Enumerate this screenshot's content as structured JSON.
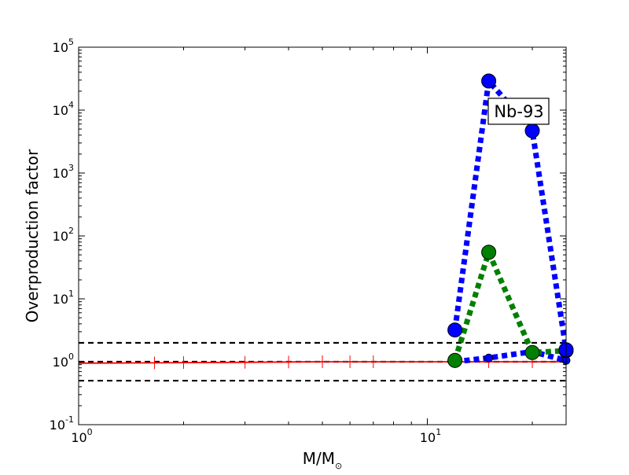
{
  "chart_data": {
    "type": "line",
    "annotation": "Nb-93",
    "ylabel": "Overproduction factor",
    "xlabel_main": "M/M",
    "xlabel_sub": "⊙",
    "xscale": "log",
    "yscale": "log",
    "xlim": [
      1,
      25
    ],
    "ylim": [
      0.1,
      100000
    ],
    "x_ticks": [
      {
        "value": 1,
        "base": "10",
        "exp": "0"
      },
      {
        "value": 10,
        "base": "10",
        "exp": "1"
      }
    ],
    "y_ticks": [
      {
        "value": 0.1,
        "base": "10",
        "exp": "-1"
      },
      {
        "value": 1,
        "base": "10",
        "exp": "0"
      },
      {
        "value": 10,
        "base": "10",
        "exp": "1"
      },
      {
        "value": 100,
        "base": "10",
        "exp": "2"
      },
      {
        "value": 1000,
        "base": "10",
        "exp": "3"
      },
      {
        "value": 10000,
        "base": "10",
        "exp": "4"
      },
      {
        "value": 100000,
        "base": "10",
        "exp": "5"
      }
    ],
    "reference_lines": [
      0.5,
      1,
      2
    ],
    "colors": {
      "series_blue": "#0000ff",
      "series_green": "#008000",
      "series_red": "#ff0000",
      "reference": "#000000"
    },
    "series": [
      {
        "color": "series_red",
        "style": "solid",
        "marker": "plus",
        "x": [
          1,
          1.65,
          2,
          3,
          4,
          5,
          6,
          7,
          12,
          15,
          20,
          25
        ],
        "y": [
          0.95,
          0.96,
          0.97,
          0.98,
          0.99,
          1.0,
          1.0,
          1.0,
          1.0,
          1.0,
          1.0,
          1.0
        ]
      },
      {
        "color": "series_blue",
        "style": "dotted",
        "marker": "small-circle",
        "x": [
          12,
          15,
          20,
          25
        ],
        "y": [
          1.0,
          1.15,
          1.45,
          1.05
        ]
      },
      {
        "color": "series_green",
        "style": "dotted",
        "marker": "large-circle",
        "x": [
          12,
          15,
          20,
          25
        ],
        "y": [
          1.05,
          55,
          1.4,
          1.5
        ]
      },
      {
        "color": "series_blue",
        "style": "dotted",
        "marker": "large-circle",
        "x": [
          12,
          15,
          20,
          25
        ],
        "y": [
          3.2,
          29000,
          4700,
          1.55
        ]
      }
    ]
  }
}
